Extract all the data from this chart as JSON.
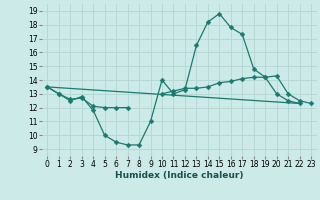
{
  "xlabel": "Humidex (Indice chaleur)",
  "bg_color": "#cceae8",
  "grid_color": "#b8d8d6",
  "line_color": "#1a7a6e",
  "xlim": [
    -0.5,
    23.5
  ],
  "ylim": [
    9,
    19
  ],
  "yticks": [
    9,
    10,
    11,
    12,
    13,
    14,
    15,
    16,
    17,
    18,
    19
  ],
  "xticks": [
    0,
    1,
    2,
    3,
    4,
    5,
    6,
    7,
    8,
    9,
    10,
    11,
    12,
    13,
    14,
    15,
    16,
    17,
    18,
    19,
    20,
    21,
    22,
    23
  ],
  "line1_x": [
    0,
    1,
    2,
    3,
    4,
    5,
    6,
    7,
    8,
    9,
    10,
    11,
    12,
    13,
    14,
    15,
    16,
    17,
    18,
    19,
    20,
    21,
    22
  ],
  "line1_y": [
    13.5,
    13.0,
    12.5,
    12.8,
    11.8,
    10.0,
    9.5,
    9.3,
    9.3,
    11.0,
    14.0,
    13.0,
    13.3,
    16.5,
    18.2,
    18.8,
    17.8,
    17.3,
    14.8,
    14.2,
    13.0,
    12.5,
    12.3
  ],
  "line2_x": [
    0,
    1,
    2,
    3,
    4,
    5,
    6,
    7,
    10,
    11,
    12,
    13,
    14,
    15,
    16,
    17,
    18,
    19,
    20,
    21,
    22,
    23
  ],
  "line2_y": [
    13.5,
    13.0,
    12.6,
    12.7,
    12.1,
    12.0,
    12.0,
    12.0,
    13.0,
    13.2,
    13.4,
    13.4,
    13.5,
    13.8,
    13.9,
    14.1,
    14.2,
    14.2,
    14.3,
    13.0,
    12.5,
    12.3
  ],
  "line3_x": [
    0,
    22
  ],
  "line3_y": [
    13.5,
    12.3
  ],
  "xlabel_fontsize": 6.5,
  "tick_fontsize": 5.5
}
